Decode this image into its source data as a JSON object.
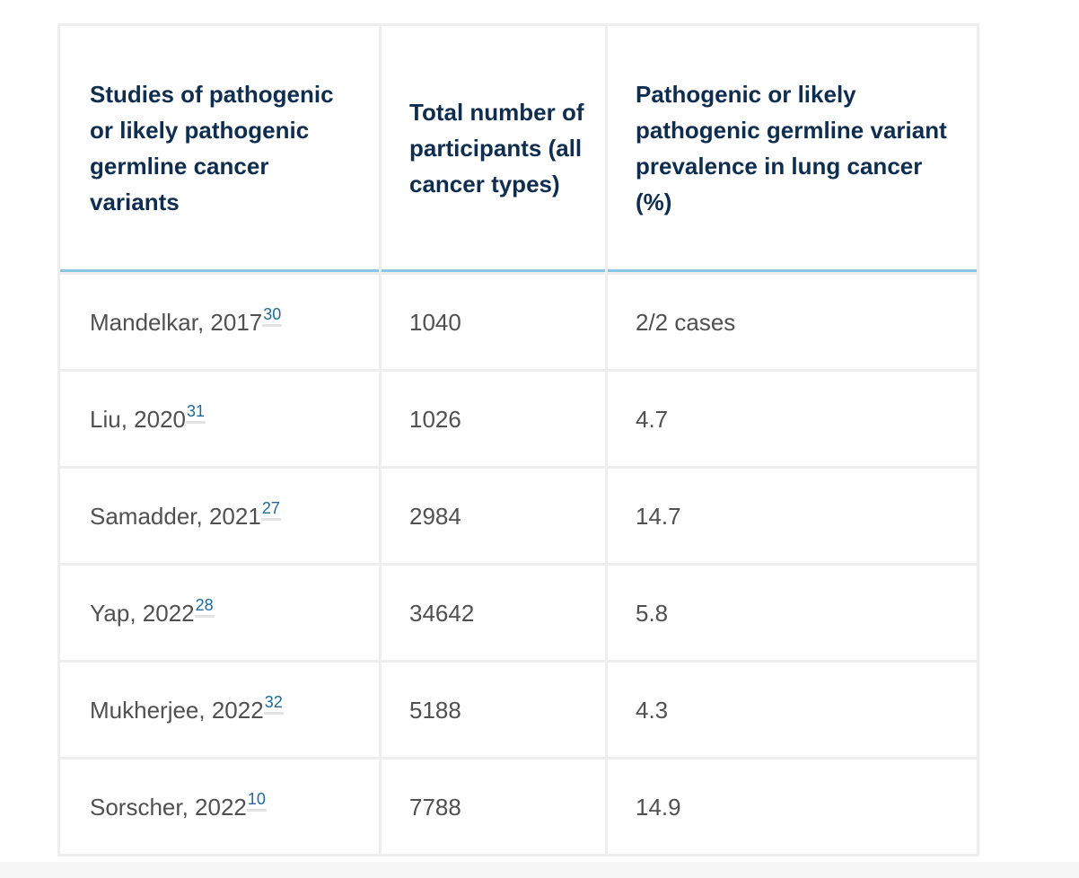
{
  "table": {
    "headers": [
      "Studies of pathogenic or likely pathogenic germline cancer variants",
      "Total number of participants (all cancer types)",
      "Pathogenic or likely pathogenic germline variant prevalence in lung cancer (%)"
    ],
    "rows": [
      {
        "study": "Mandelkar, 2017",
        "ref": "30",
        "participants": "1040",
        "prevalence": "2/2 cases"
      },
      {
        "study": "Liu, 2020",
        "ref": "31",
        "participants": "1026",
        "prevalence": "4.7"
      },
      {
        "study": "Samadder, 2021",
        "ref": "27",
        "participants": "2984",
        "prevalence": "14.7"
      },
      {
        "study": "Yap, 2022",
        "ref": "28",
        "participants": "34642",
        "prevalence": "5.8"
      },
      {
        "study": "Mukherjee, 2022",
        "ref": "32",
        "participants": "5188",
        "prevalence": "4.3"
      },
      {
        "study": "Sorscher, 2022",
        "ref": "10",
        "participants": "7788",
        "prevalence": "14.9"
      }
    ]
  }
}
